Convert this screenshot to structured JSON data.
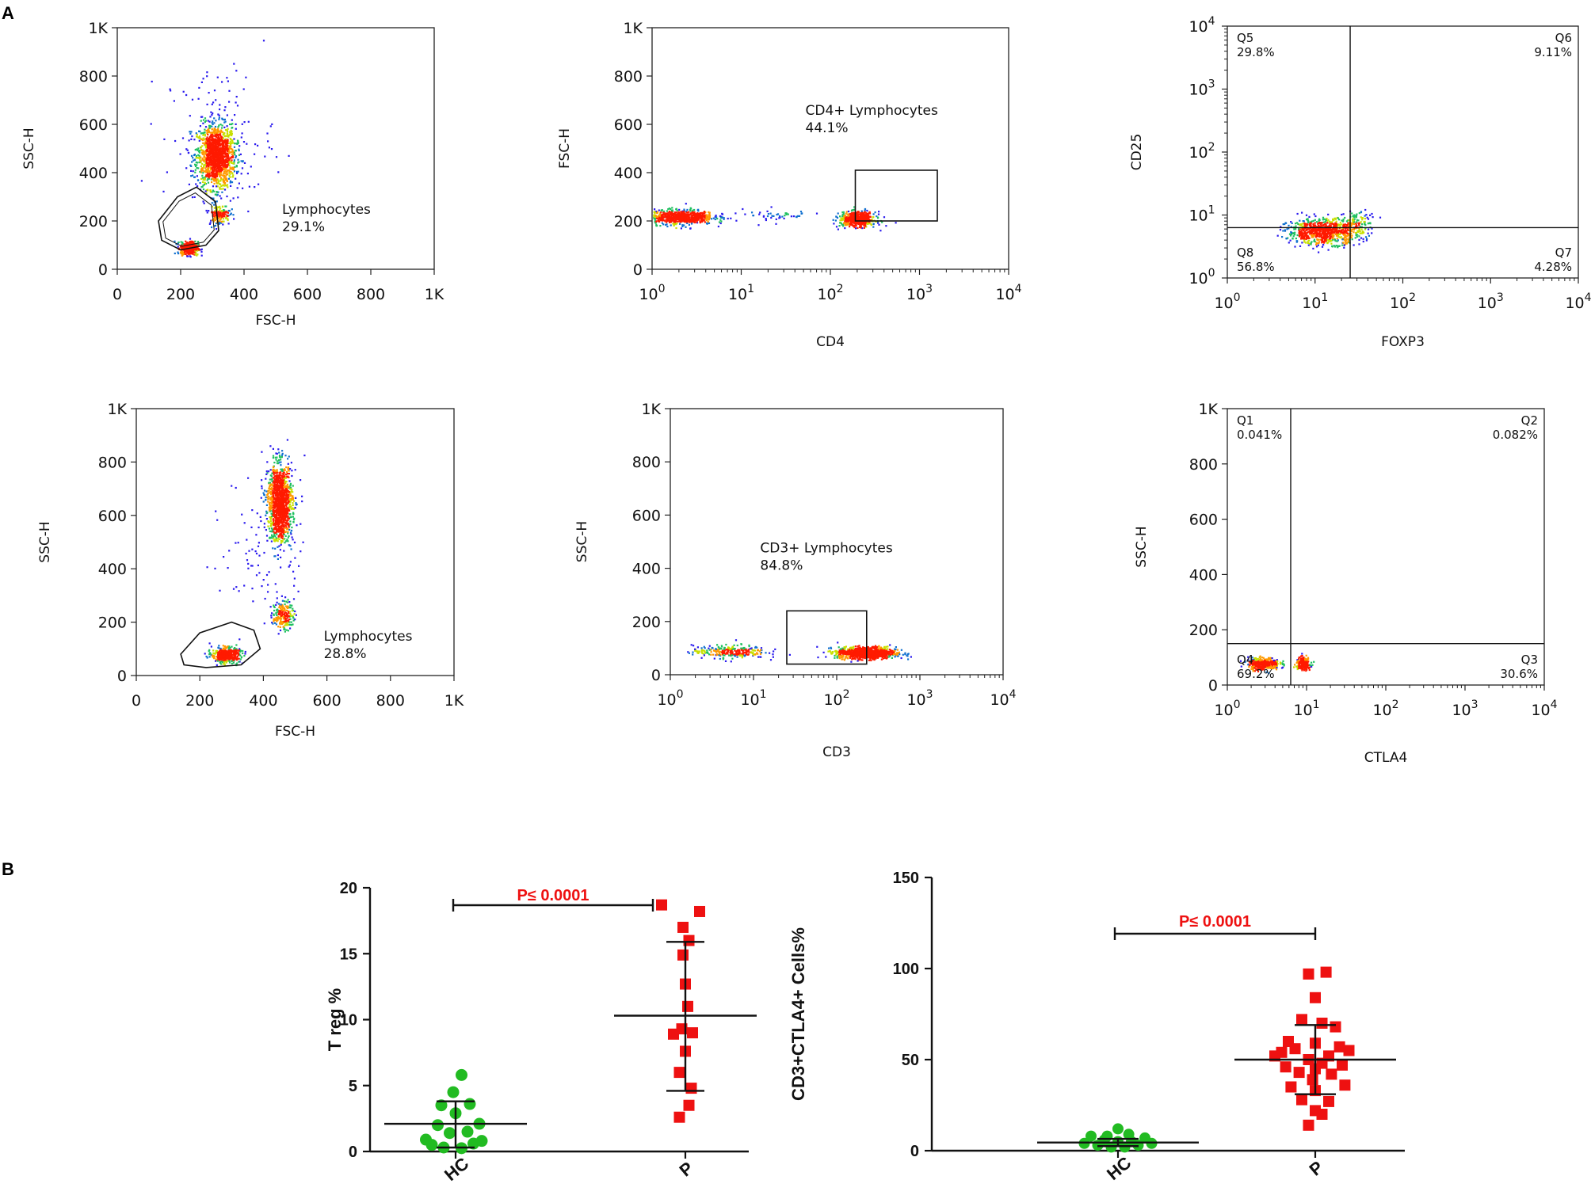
{
  "panel_labels": {
    "a": "A",
    "b": "B"
  },
  "colors": {
    "hc": "#22bb22",
    "p": "#ee1111",
    "pvalue": "#ee1111"
  },
  "chart_data": [
    {
      "type": "scatter",
      "title": "",
      "xlabel": "FSC-H",
      "ylabel": "SSC-H",
      "xscale": "linear",
      "yscale": "linear",
      "xlim": [
        0,
        1000
      ],
      "ylim": [
        0,
        1000
      ],
      "xticks": [
        "0",
        "200",
        "400",
        "600",
        "800",
        "1K"
      ],
      "yticks": [
        "0",
        "200",
        "400",
        "600",
        "800",
        "1K"
      ],
      "gate": {
        "shape": "polygon",
        "name": "Lymphocytes",
        "percent": "29.1%"
      },
      "populations": [
        {
          "center": [
            310,
            470
          ],
          "spread": [
            55,
            120
          ],
          "count": 1400
        },
        {
          "center": [
            225,
            90
          ],
          "spread": [
            25,
            25
          ],
          "count": 420
        },
        {
          "center": [
            320,
            230
          ],
          "spread": [
            30,
            40
          ],
          "count": 150
        },
        {
          "center": [
            320,
            560
          ],
          "spread": [
            160,
            260
          ],
          "count": 120
        }
      ]
    },
    {
      "type": "scatter",
      "title": "",
      "xlabel": "CD4",
      "ylabel": "FSC-H",
      "xscale": "log",
      "yscale": "linear",
      "xlim": [
        0,
        4
      ],
      "ylim": [
        0,
        1000
      ],
      "xticks": [
        "10^0",
        "10^1",
        "10^2",
        "10^3",
        "10^4"
      ],
      "yticks": [
        "0",
        "200",
        "400",
        "600",
        "800",
        "1K"
      ],
      "gate": {
        "shape": "rect",
        "name": "CD4+ Lymphocytes",
        "percent": "44.1%"
      },
      "populations": [
        {
          "center": [
            0.3,
            220
          ],
          "spread": [
            0.35,
            28
          ],
          "count": 700
        },
        {
          "center": [
            2.3,
            210
          ],
          "spread": [
            0.18,
            28
          ],
          "count": 550
        },
        {
          "center": [
            1.3,
            225
          ],
          "spread": [
            0.5,
            25
          ],
          "count": 50
        }
      ]
    },
    {
      "type": "scatter",
      "title": "",
      "xlabel": "FOXP3",
      "ylabel": "CD25",
      "xscale": "log",
      "yscale": "log",
      "xlim": [
        0,
        4
      ],
      "ylim": [
        0,
        4
      ],
      "xticks": [
        "10^0",
        "10^1",
        "10^2",
        "10^3",
        "10^4"
      ],
      "yticks": [
        "10^0",
        "10^1",
        "10^2",
        "10^3",
        "10^4"
      ],
      "quadrants": {
        "x": 1.4,
        "y": 0.8
      },
      "quadrant_labels": [
        {
          "name": "Q5",
          "value": "29.8%",
          "pos": "top-left"
        },
        {
          "name": "Q6",
          "value": "9.11%",
          "pos": "top-right"
        },
        {
          "name": "Q8",
          "value": "56.8%",
          "pos": "bottom-left"
        },
        {
          "name": "Q7",
          "value": "4.28%",
          "pos": "bottom-right"
        }
      ],
      "populations": [
        {
          "center": [
            1.1,
            0.75
          ],
          "spread": [
            0.38,
            0.18
          ],
          "count": 900
        },
        {
          "center": [
            1.5,
            0.95
          ],
          "spread": [
            0.2,
            0.15
          ],
          "count": 60
        }
      ]
    },
    {
      "type": "scatter",
      "title": "",
      "xlabel": "FSC-H",
      "ylabel": "SSC-H",
      "xscale": "linear",
      "yscale": "linear",
      "xlim": [
        0,
        1000
      ],
      "ylim": [
        0,
        1000
      ],
      "xticks": [
        "0",
        "200",
        "400",
        "600",
        "800",
        "1K"
      ],
      "yticks": [
        "0",
        "200",
        "400",
        "600",
        "800",
        "1K"
      ],
      "gate": {
        "shape": "polygon",
        "name": "Lymphocytes",
        "percent": "28.8%"
      },
      "populations": [
        {
          "center": [
            450,
            650
          ],
          "spread": [
            35,
            130
          ],
          "count": 1300
        },
        {
          "center": [
            280,
            80
          ],
          "spread": [
            40,
            25
          ],
          "count": 450
        },
        {
          "center": [
            460,
            230
          ],
          "spread": [
            30,
            50
          ],
          "count": 200
        },
        {
          "center": [
            400,
            500
          ],
          "spread": [
            120,
            250
          ],
          "count": 100
        }
      ]
    },
    {
      "type": "scatter",
      "title": "",
      "xlabel": "CD3",
      "ylabel": "SSC-H",
      "xscale": "log",
      "yscale": "linear",
      "xlim": [
        0,
        4
      ],
      "ylim": [
        0,
        1000
      ],
      "xticks": [
        "10^0",
        "10^1",
        "10^2",
        "10^3",
        "10^4"
      ],
      "yticks": [
        "0",
        "200",
        "400",
        "600",
        "800",
        "1K"
      ],
      "gate": {
        "shape": "rect",
        "name": "CD3+ Lymphocytes",
        "percent": "84.8%"
      },
      "populations": [
        {
          "center": [
            2.35,
            85
          ],
          "spread": [
            0.32,
            20
          ],
          "count": 1000
        },
        {
          "center": [
            0.7,
            90
          ],
          "spread": [
            0.4,
            22
          ],
          "count": 280
        }
      ]
    },
    {
      "type": "scatter",
      "title": "",
      "xlabel": "CTLA4",
      "ylabel": "SSC-H",
      "xscale": "log",
      "yscale": "linear",
      "xlim": [
        0,
        4
      ],
      "ylim": [
        0,
        1000
      ],
      "xticks": [
        "10^0",
        "10^1",
        "10^2",
        "10^3",
        "10^4"
      ],
      "yticks": [
        "0",
        "200",
        "400",
        "600",
        "800",
        "1K"
      ],
      "quadrants": {
        "x": 0.8,
        "y": 150
      },
      "quadrant_labels": [
        {
          "name": "Q1",
          "value": "0.041%",
          "pos": "top-left"
        },
        {
          "name": "Q2",
          "value": "0.082%",
          "pos": "top-right"
        },
        {
          "name": "Q4",
          "value": "69.2%",
          "pos": "bottom-left"
        },
        {
          "name": "Q3",
          "value": "30.6%",
          "pos": "bottom-right"
        }
      ],
      "populations": [
        {
          "center": [
            0.45,
            80
          ],
          "spread": [
            0.18,
            20
          ],
          "count": 350
        },
        {
          "center": [
            0.95,
            80
          ],
          "spread": [
            0.08,
            20
          ],
          "count": 250
        }
      ]
    },
    {
      "type": "scatter",
      "title": "",
      "xlabel": "",
      "ylabel": "T reg %",
      "categories": [
        "HC",
        "P"
      ],
      "ylim": [
        0,
        20
      ],
      "yticks": [
        0,
        5,
        10,
        15,
        20
      ],
      "series": [
        {
          "name": "HC",
          "marker": "circle",
          "mean": 2.1,
          "sd_low": 0.3,
          "sd_high": 3.8,
          "points": [
            [
              -0.2,
              0.5
            ],
            [
              0.15,
              0.6
            ],
            [
              -0.1,
              0.3
            ],
            [
              0.05,
              0.25
            ],
            [
              -0.25,
              0.9
            ],
            [
              0.22,
              0.8
            ],
            [
              -0.05,
              1.4
            ],
            [
              0.1,
              1.5
            ],
            [
              -0.15,
              2.0
            ],
            [
              0.2,
              2.1
            ],
            [
              0.0,
              2.9
            ],
            [
              -0.12,
              3.5
            ],
            [
              0.12,
              3.6
            ],
            [
              -0.02,
              4.5
            ],
            [
              0.05,
              5.8
            ]
          ]
        },
        {
          "name": "P",
          "marker": "square",
          "mean": 10.3,
          "sd_low": 4.6,
          "sd_high": 15.9,
          "points": [
            [
              -0.2,
              18.7
            ],
            [
              0.12,
              18.2
            ],
            [
              -0.02,
              17.0
            ],
            [
              0.03,
              16.0
            ],
            [
              -0.02,
              14.9
            ],
            [
              0.0,
              12.7
            ],
            [
              0.02,
              11.0
            ],
            [
              -0.03,
              9.3
            ],
            [
              0.06,
              9.0
            ],
            [
              -0.1,
              8.9
            ],
            [
              0.0,
              7.6
            ],
            [
              -0.05,
              6.0
            ],
            [
              0.05,
              4.8
            ],
            [
              0.03,
              3.5
            ],
            [
              -0.05,
              2.6
            ]
          ]
        }
      ],
      "annotation": "P≤ 0.0001"
    },
    {
      "type": "scatter",
      "title": "",
      "xlabel": "",
      "ylabel": "CD3+CTLA4+ Cells%",
      "categories": [
        "HC",
        "P"
      ],
      "ylim": [
        0,
        150
      ],
      "yticks": [
        0,
        50,
        100,
        150
      ],
      "series": [
        {
          "name": "HC",
          "marker": "circle",
          "mean": 4.5,
          "sd_low": 2.5,
          "sd_high": 6.5,
          "points": [
            [
              -0.2,
              8
            ],
            [
              -0.1,
              6
            ],
            [
              0.0,
              5
            ],
            [
              0.1,
              5
            ],
            [
              0.2,
              7
            ],
            [
              -0.15,
              3
            ],
            [
              0.15,
              3
            ],
            [
              -0.05,
              2
            ],
            [
              0.05,
              2
            ],
            [
              0.0,
              12
            ],
            [
              -0.25,
              4
            ],
            [
              0.25,
              4
            ],
            [
              0.08,
              9
            ],
            [
              -0.08,
              8
            ]
          ]
        },
        {
          "name": "P",
          "marker": "square",
          "mean": 50,
          "sd_low": 31,
          "sd_high": 69,
          "points": [
            [
              0.08,
              98
            ],
            [
              -0.05,
              97
            ],
            [
              0.0,
              84
            ],
            [
              -0.1,
              72
            ],
            [
              0.05,
              70
            ],
            [
              0.15,
              68
            ],
            [
              -0.2,
              60
            ],
            [
              0.0,
              59
            ],
            [
              0.18,
              57
            ],
            [
              -0.15,
              56
            ],
            [
              -0.25,
              54
            ],
            [
              0.25,
              55
            ],
            [
              -0.3,
              52
            ],
            [
              0.1,
              52
            ],
            [
              -0.05,
              50
            ],
            [
              0.05,
              48
            ],
            [
              0.2,
              47
            ],
            [
              -0.22,
              46
            ],
            [
              0.0,
              45
            ],
            [
              -0.12,
              43
            ],
            [
              0.12,
              42
            ],
            [
              -0.02,
              39
            ],
            [
              0.22,
              36
            ],
            [
              -0.18,
              35
            ],
            [
              0.0,
              33
            ],
            [
              -0.1,
              28
            ],
            [
              0.1,
              27
            ],
            [
              0.0,
              22
            ],
            [
              0.05,
              20
            ],
            [
              -0.05,
              14
            ]
          ]
        }
      ],
      "annotation": "P≤ 0.0001"
    }
  ]
}
